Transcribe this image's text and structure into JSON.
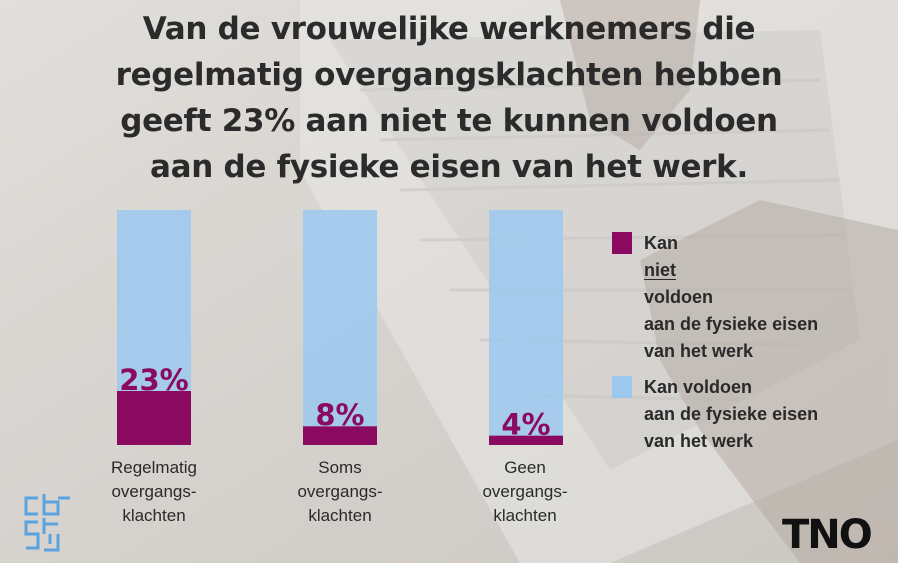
{
  "title_lines": [
    "Van de vrouwelijke werknemers die",
    "regelmatig overgangsklachten hebben",
    "geeft 23% aan niet te kunnen voldoen",
    "aan de fysieke eisen van het werk."
  ],
  "chart_data": {
    "type": "bar",
    "stacked": true,
    "categories": [
      [
        "Regelmatig",
        "overgangs-",
        "klachten"
      ],
      [
        "Soms",
        "overgangs-",
        "klachten"
      ],
      [
        "Geen",
        "overgangs-",
        "klachten"
      ]
    ],
    "series": [
      {
        "name": "Kan niet voldoen aan de fysieke eisen van het werk",
        "values": [
          23,
          8,
          4
        ],
        "color": "#8b0a5f"
      },
      {
        "name": "Kan voldoen aan de fysieke eisen van het werk",
        "values": [
          77,
          92,
          96
        ],
        "color": "#9cc8f0"
      }
    ],
    "data_labels": [
      "23%",
      "8%",
      "4%"
    ],
    "ylim": [
      0,
      100
    ]
  },
  "legend": {
    "niet": {
      "before": "Kan ",
      "underlined": "niet",
      "after": " voldoen",
      "line2": "aan de fysieke eisen",
      "line3": "van het werk",
      "color": "#8b0a5f"
    },
    "wel": {
      "line1": "Kan voldoen",
      "line2": "aan de fysieke eisen",
      "line3": "van het werk",
      "color": "#9cc8f0"
    }
  },
  "logos": {
    "tno": "TNO"
  },
  "colors": {
    "background": "#cfcbc6",
    "label_color": "#8b0a5f"
  }
}
